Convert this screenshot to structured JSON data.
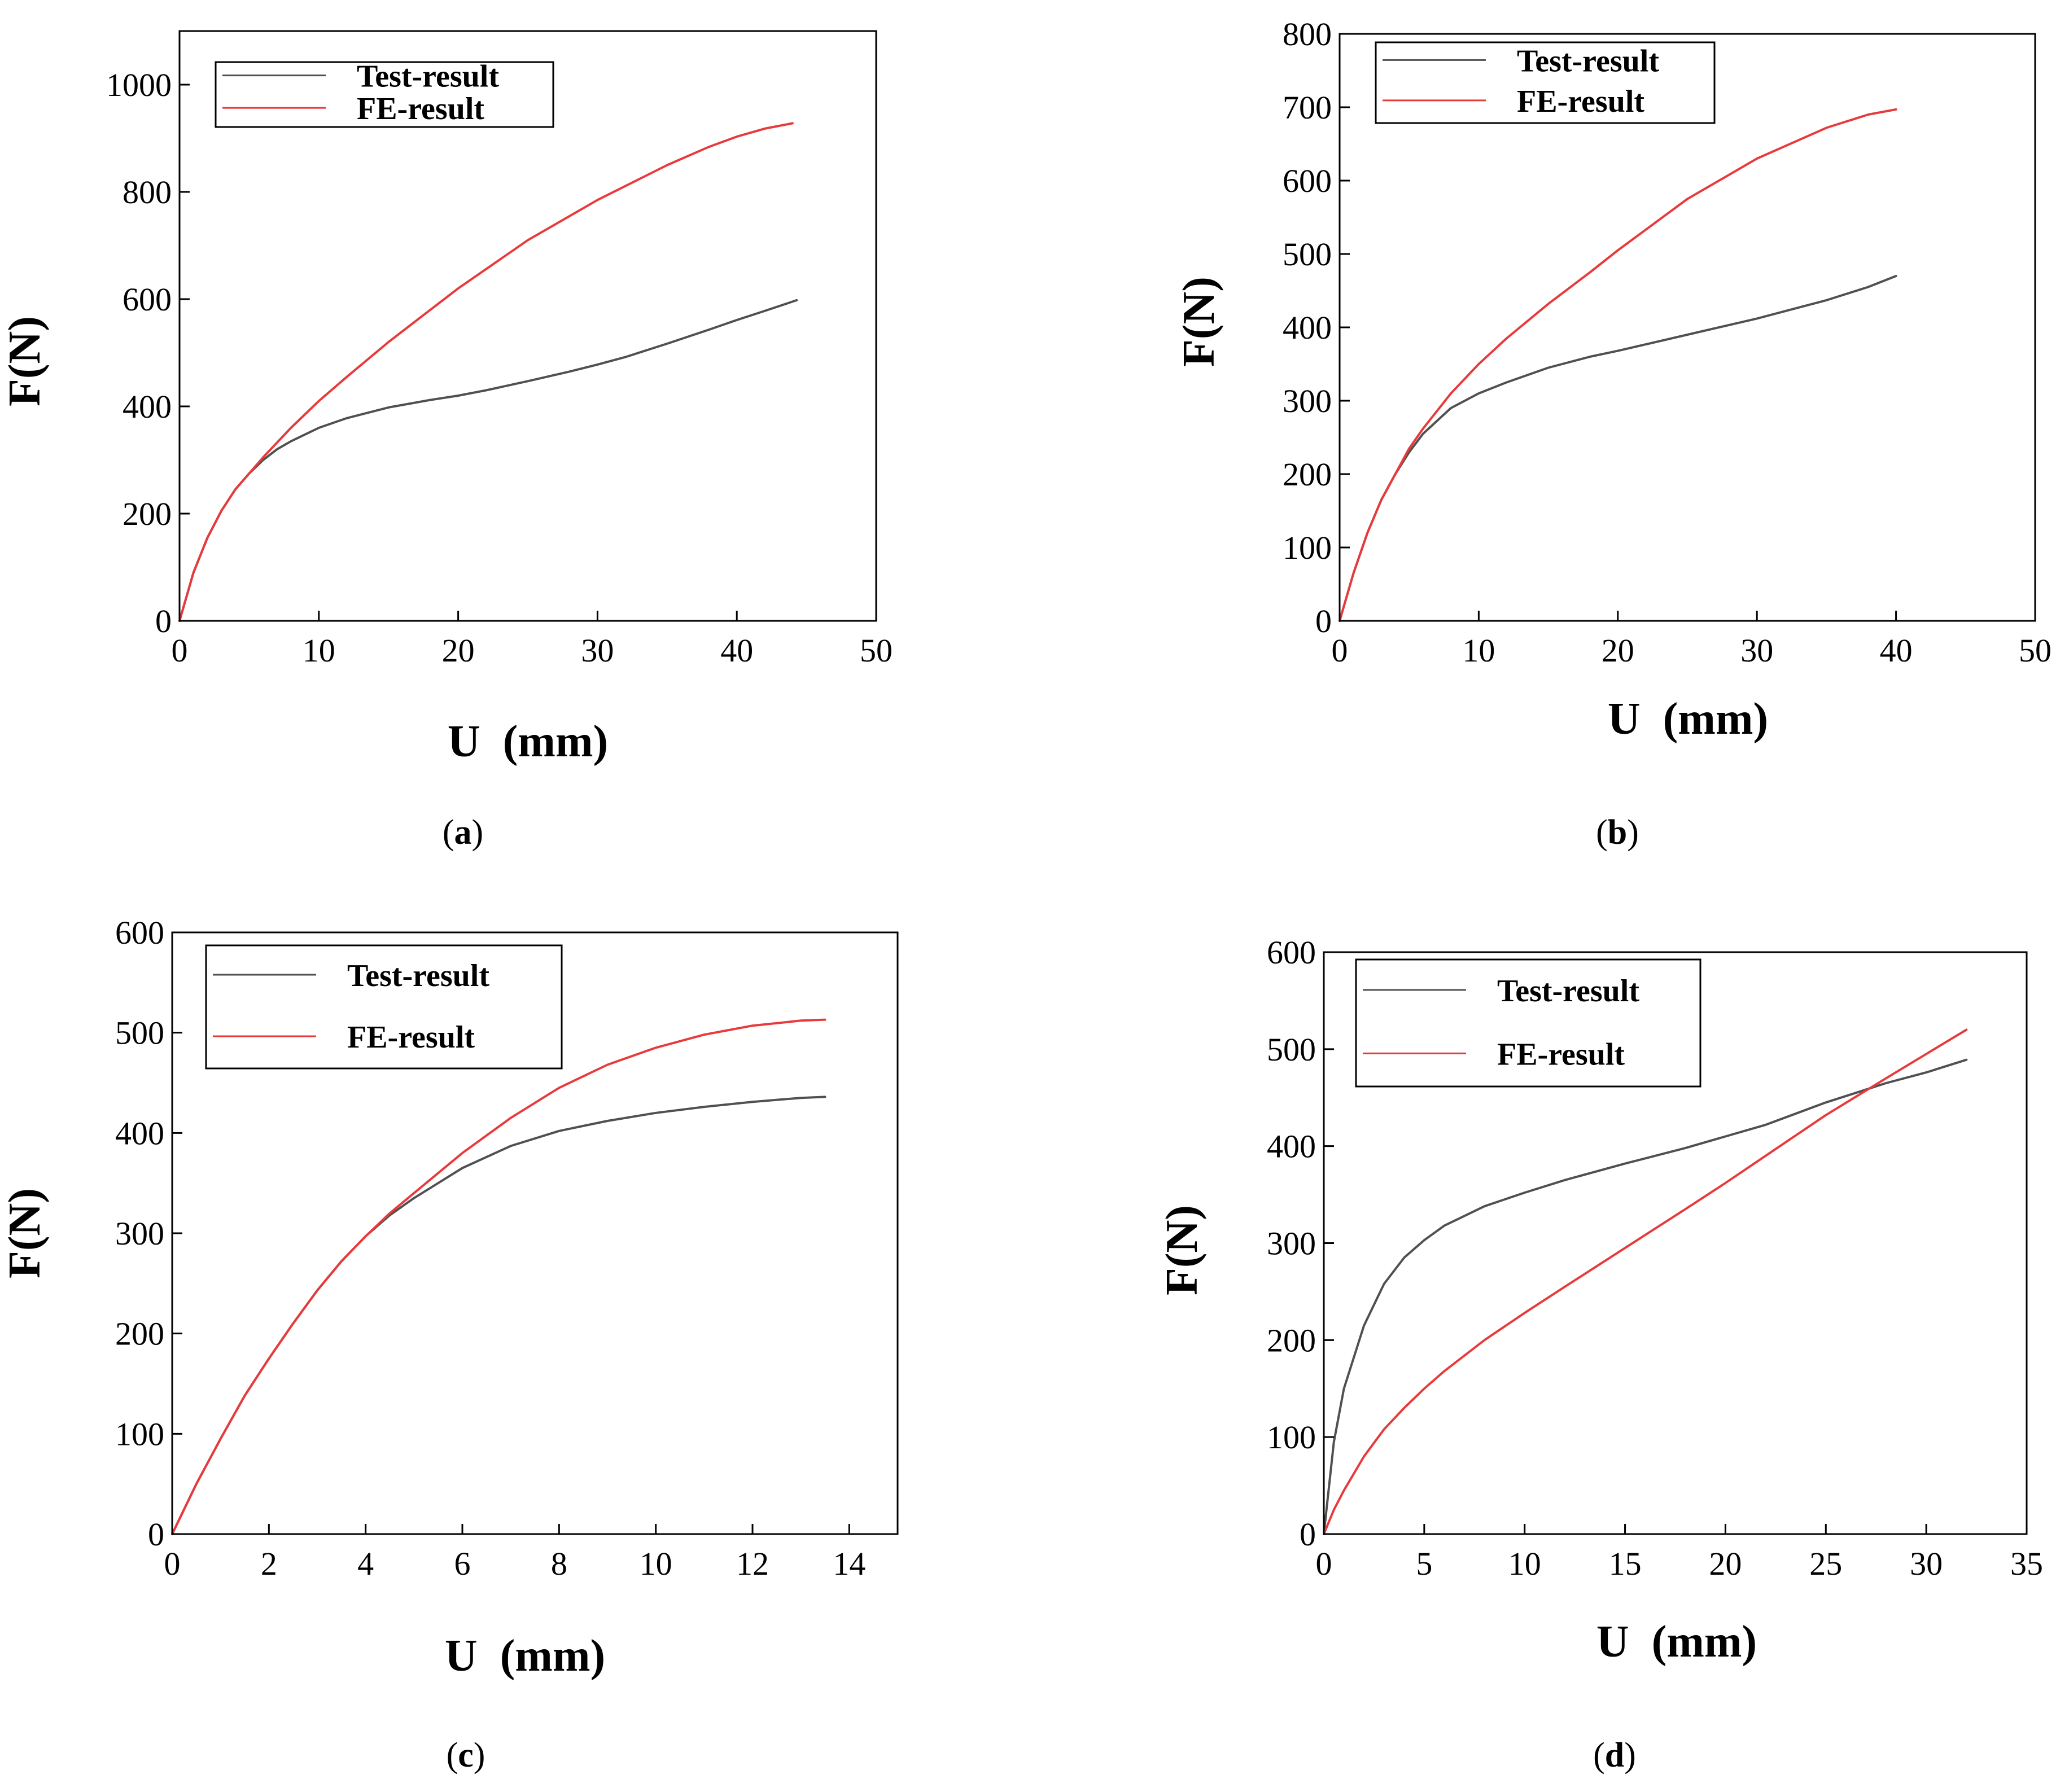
{
  "colors": {
    "test": "#505050",
    "fe": "#e8393b",
    "axis": "#000000"
  },
  "chart_data": [
    {
      "type": "line",
      "caption": "a",
      "xlabel": "U  (mm)",
      "ylabel": "F(N)",
      "xlim": [
        0,
        50
      ],
      "ylim": [
        0,
        1100
      ],
      "xticks": [
        0,
        10,
        20,
        30,
        40,
        50
      ],
      "yticks": [
        0,
        200,
        400,
        600,
        800,
        1000
      ],
      "legend": [
        "Test-result",
        "FE-result"
      ],
      "series": [
        {
          "name": "Test-result",
          "x": [
            0,
            1,
            2,
            3,
            4,
            5,
            6,
            7,
            8,
            10,
            12,
            15,
            18,
            20,
            22,
            25,
            28,
            30,
            32,
            35,
            38,
            40,
            42,
            44.3
          ],
          "y": [
            0,
            90,
            155,
            205,
            245,
            275,
            300,
            320,
            335,
            360,
            378,
            398,
            412,
            420,
            430,
            447,
            465,
            478,
            492,
            517,
            543,
            561,
            578,
            598
          ]
        },
        {
          "name": "FE-result",
          "x": [
            0,
            1,
            2,
            3,
            4,
            5,
            6,
            8,
            10,
            12,
            15,
            18,
            20,
            25,
            30,
            35,
            38,
            40,
            42,
            44
          ],
          "y": [
            0,
            90,
            155,
            205,
            245,
            275,
            305,
            360,
            410,
            455,
            520,
            580,
            620,
            710,
            785,
            850,
            884,
            903,
            918,
            928
          ]
        }
      ]
    },
    {
      "type": "line",
      "caption": "b",
      "xlabel": "U  (mm)",
      "ylabel": "F(N)",
      "xlim": [
        0,
        50
      ],
      "ylim": [
        0,
        800
      ],
      "xticks": [
        0,
        10,
        20,
        30,
        40,
        50
      ],
      "yticks": [
        0,
        100,
        200,
        300,
        400,
        500,
        600,
        700,
        800
      ],
      "legend": [
        "Test-result",
        "FE-result"
      ],
      "series": [
        {
          "name": "Test-result",
          "x": [
            0,
            1,
            2,
            3,
            4,
            5,
            6,
            8,
            10,
            12,
            15,
            18,
            20,
            25,
            30,
            35,
            38,
            40
          ],
          "y": [
            0,
            65,
            120,
            165,
            200,
            230,
            255,
            290,
            310,
            325,
            345,
            360,
            368,
            390,
            412,
            437,
            455,
            470
          ]
        },
        {
          "name": "FE-result",
          "x": [
            0,
            1,
            2,
            3,
            4,
            5,
            6,
            8,
            10,
            12,
            15,
            18,
            20,
            25,
            30,
            35,
            38,
            40
          ],
          "y": [
            0,
            65,
            120,
            165,
            200,
            235,
            262,
            310,
            350,
            385,
            432,
            475,
            505,
            575,
            630,
            672,
            690,
            697
          ]
        }
      ]
    },
    {
      "type": "line",
      "caption": "c",
      "xlabel": "U  (mm)",
      "ylabel": "F(N)",
      "xlim": [
        0,
        15
      ],
      "ylim": [
        0,
        600
      ],
      "xticks": [
        0,
        2,
        4,
        6,
        8,
        10,
        12,
        14
      ],
      "yticks": [
        0,
        100,
        200,
        300,
        400,
        500,
        600
      ],
      "legend": [
        "Test-result",
        "FE-result"
      ],
      "series": [
        {
          "name": "Test-result",
          "x": [
            0,
            0.5,
            1,
            1.5,
            2,
            2.5,
            3,
            3.5,
            4,
            4.5,
            5,
            6,
            7,
            8,
            9,
            10,
            11,
            12,
            13,
            13.5
          ],
          "y": [
            0,
            50,
            95,
            138,
            175,
            210,
            243,
            272,
            297,
            318,
            335,
            365,
            387,
            402,
            412,
            420,
            426,
            431,
            435,
            436
          ]
        },
        {
          "name": "FE-result",
          "x": [
            0,
            0.5,
            1,
            1.5,
            2,
            2.5,
            3,
            3.5,
            4,
            4.5,
            5,
            6,
            7,
            8,
            9,
            10,
            11,
            12,
            13,
            13.5
          ],
          "y": [
            0,
            50,
            95,
            138,
            175,
            210,
            243,
            272,
            297,
            320,
            340,
            380,
            415,
            445,
            468,
            485,
            498,
            507,
            512,
            513
          ]
        }
      ]
    },
    {
      "type": "line",
      "caption": "d",
      "xlabel": "U  (mm)",
      "ylabel": "F(N)",
      "xlim": [
        0,
        35
      ],
      "ylim": [
        0,
        600
      ],
      "xticks": [
        0,
        5,
        10,
        15,
        20,
        25,
        30,
        35
      ],
      "yticks": [
        0,
        100,
        200,
        300,
        400,
        500,
        600
      ],
      "legend": [
        "Test-result",
        "FE-result"
      ],
      "series": [
        {
          "name": "Test-result",
          "x": [
            0,
            0.5,
            1,
            2,
            3,
            4,
            5,
            6,
            8,
            10,
            12,
            15,
            18,
            20,
            22,
            25,
            28,
            30,
            32
          ],
          "y": [
            0,
            95,
            150,
            215,
            258,
            285,
            303,
            318,
            338,
            352,
            365,
            382,
            398,
            410,
            422,
            445,
            465,
            476,
            489
          ]
        },
        {
          "name": "FE-result",
          "x": [
            0,
            0.5,
            1,
            2,
            3,
            4,
            5,
            6,
            8,
            10,
            12,
            15,
            18,
            20,
            22,
            25,
            28,
            30,
            32
          ],
          "y": [
            0,
            25,
            45,
            80,
            108,
            130,
            150,
            168,
            200,
            228,
            255,
            295,
            335,
            362,
            390,
            432,
            470,
            495,
            520
          ]
        }
      ]
    }
  ]
}
